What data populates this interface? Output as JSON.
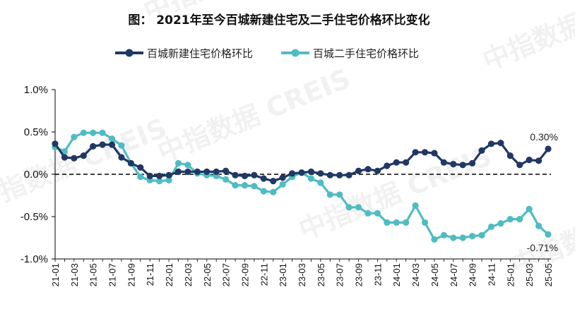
{
  "chart_data": {
    "type": "line",
    "title": "图：  2021年至今百城新建住宅及二手住宅价格环比变化",
    "xlabel": "",
    "ylabel": "",
    "ylim": [
      -1.0,
      1.0
    ],
    "yticks": [
      "1.0%",
      "0.5%",
      "0.0%",
      "-0.5%",
      "-1.0%"
    ],
    "ytick_values": [
      1.0,
      0.5,
      0.0,
      -0.5,
      -1.0
    ],
    "reference_line": 0.0,
    "legend_position": "top-center",
    "grid": false,
    "x": [
      "21-01",
      "21-02",
      "21-03",
      "21-04",
      "21-05",
      "21-06",
      "21-07",
      "21-08",
      "21-09",
      "21-10",
      "21-11",
      "21-12",
      "22-01",
      "22-02",
      "22-03",
      "22-04",
      "22-05",
      "22-06",
      "22-07",
      "22-08",
      "22-09",
      "22-10",
      "22-11",
      "22-12",
      "23-01",
      "23-02",
      "23-03",
      "23-04",
      "23-05",
      "23-06",
      "23-07",
      "23-08",
      "23-09",
      "23-10",
      "23-11",
      "23-12",
      "24-01",
      "24-02",
      "24-03",
      "24-04",
      "24-05",
      "24-06",
      "24-07",
      "24-08",
      "24-09",
      "24-10",
      "24-11",
      "24-12",
      "25-01",
      "25-02",
      "25-03",
      "25-04",
      "25-05"
    ],
    "xtick_labels": [
      "21-01",
      "21-03",
      "21-05",
      "21-07",
      "21-09",
      "21-11",
      "22-01",
      "22-03",
      "22-05",
      "22-07",
      "22-09",
      "22-11",
      "23-01",
      "23-03",
      "23-05",
      "23-07",
      "23-09",
      "23-11",
      "24-01",
      "24-03",
      "24-05",
      "24-07",
      "24-09",
      "24-11",
      "25-01",
      "25-03",
      "25-05"
    ],
    "series": [
      {
        "name": "百城新建住宅价格环比",
        "color": "#203864",
        "values": [
          0.36,
          0.2,
          0.19,
          0.22,
          0.33,
          0.35,
          0.35,
          0.2,
          0.13,
          0.08,
          -0.02,
          -0.02,
          -0.01,
          0.03,
          0.03,
          0.03,
          0.03,
          0.03,
          0.04,
          -0.01,
          -0.02,
          -0.01,
          -0.05,
          -0.08,
          -0.04,
          0.01,
          0.02,
          0.03,
          0.01,
          -0.01,
          -0.01,
          -0.01,
          0.04,
          0.06,
          0.04,
          0.1,
          0.14,
          0.14,
          0.26,
          0.26,
          0.25,
          0.14,
          0.12,
          0.11,
          0.13,
          0.28,
          0.36,
          0.37,
          0.22,
          0.11,
          0.17,
          0.16,
          0.3
        ]
      },
      {
        "name": "百城二手住宅价格环比",
        "color": "#4fbcc2",
        "values": [
          0.32,
          0.27,
          0.44,
          0.49,
          0.49,
          0.49,
          0.42,
          0.34,
          0.13,
          -0.03,
          -0.07,
          -0.08,
          -0.07,
          0.13,
          0.11,
          0.01,
          -0.01,
          -0.02,
          -0.06,
          -0.13,
          -0.13,
          -0.14,
          -0.2,
          -0.21,
          -0.12,
          -0.03,
          0.02,
          -0.05,
          -0.1,
          -0.24,
          -0.24,
          -0.39,
          -0.39,
          -0.46,
          -0.46,
          -0.57,
          -0.57,
          -0.57,
          -0.37,
          -0.57,
          -0.77,
          -0.72,
          -0.75,
          -0.75,
          -0.73,
          -0.72,
          -0.62,
          -0.58,
          -0.53,
          -0.53,
          -0.41,
          -0.61,
          -0.71
        ]
      }
    ],
    "annotations": [
      {
        "series": 0,
        "x": "25-05",
        "text": "0.30%"
      },
      {
        "series": 1,
        "x": "25-05",
        "text": "-0.71%"
      }
    ],
    "watermark": "中指数据 CREIS"
  }
}
